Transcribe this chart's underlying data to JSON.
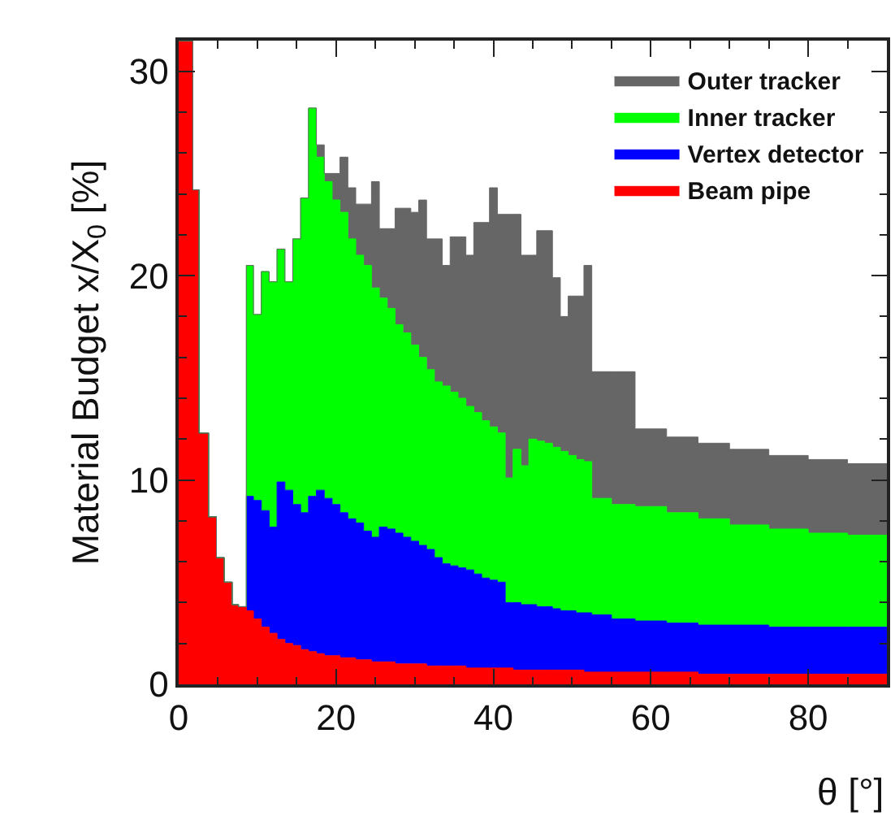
{
  "chart_data": {
    "type": "area",
    "xlabel": "θ [°]",
    "ylabel": "Material Budget x/X$_{0}$ [%]",
    "x": [
      0,
      1.8,
      2.6,
      3.8,
      4.8,
      5.8,
      6.8,
      7.6,
      8.6,
      9.5,
      10.5,
      11.5,
      12.5,
      13.5,
      14.5,
      15.5,
      16.5,
      17.5,
      18.5,
      19.5,
      20.5,
      21.5,
      22.5,
      23.5,
      24.5,
      25.5,
      26.5,
      27.5,
      28.5,
      29.5,
      30.5,
      31.5,
      32.5,
      33.5,
      34.5,
      35.5,
      36.5,
      37.5,
      38.5,
      39.5,
      40.5,
      41.5,
      42.5,
      43.5,
      44.5,
      45.5,
      46.5,
      47.5,
      48.5,
      49.5,
      50.5,
      51.5,
      52.5,
      55,
      58,
      62,
      66,
      70,
      75,
      80,
      85,
      90
    ],
    "stacked": true,
    "series": [
      {
        "name": "Beam pipe",
        "color": "#ff0000",
        "values": [
          31.5,
          24.2,
          12.3,
          8.2,
          6.2,
          5.0,
          3.9,
          3.8,
          3.6,
          3.2,
          2.8,
          2.5,
          2.2,
          2.0,
          1.9,
          1.7,
          1.6,
          1.5,
          1.4,
          1.4,
          1.3,
          1.3,
          1.2,
          1.2,
          1.1,
          1.1,
          1.1,
          1.0,
          1.0,
          1.0,
          1.0,
          0.9,
          0.9,
          0.9,
          0.9,
          0.9,
          0.8,
          0.8,
          0.8,
          0.8,
          0.8,
          0.8,
          0.7,
          0.7,
          0.7,
          0.7,
          0.7,
          0.7,
          0.7,
          0.7,
          0.7,
          0.6,
          0.6,
          0.6,
          0.6,
          0.6,
          0.5,
          0.5,
          0.5,
          0.5,
          0.5,
          0.5
        ]
      },
      {
        "name": "Vertex detector",
        "color": "#0000ff",
        "values": [
          0,
          0,
          0,
          0,
          0,
          0,
          0,
          0,
          5.6,
          5.8,
          5.7,
          5.2,
          7.7,
          7.5,
          6.9,
          6.7,
          7.6,
          8.0,
          7.7,
          7.4,
          7.1,
          6.8,
          6.7,
          6.3,
          6.1,
          6.6,
          6.5,
          6.4,
          6.2,
          6.0,
          5.8,
          5.7,
          5.3,
          5.0,
          4.9,
          4.8,
          4.8,
          4.6,
          4.4,
          4.3,
          4.2,
          3.2,
          3.3,
          3.2,
          3.2,
          3.1,
          3.1,
          3.0,
          2.9,
          2.9,
          2.8,
          2.9,
          2.8,
          2.6,
          2.5,
          2.4,
          2.4,
          2.4,
          2.3,
          2.3,
          2.3,
          2.3
        ]
      },
      {
        "name": "Inner tracker",
        "color": "#00ff00",
        "values": [
          0,
          0,
          0,
          0,
          0,
          0,
          0,
          0,
          11.3,
          9.1,
          11.7,
          12.0,
          11.4,
          10.2,
          13.0,
          15.4,
          19.0,
          16.3,
          15.5,
          14.9,
          14.7,
          13.7,
          13.1,
          13.0,
          12.2,
          11.2,
          10.8,
          10.2,
          10.0,
          9.6,
          9.2,
          8.8,
          8.6,
          8.7,
          8.5,
          8.3,
          8.0,
          7.9,
          7.7,
          7.5,
          7.3,
          6.1,
          7.5,
          6.8,
          8.1,
          8.1,
          8.0,
          7.9,
          7.8,
          7.6,
          7.5,
          7.4,
          5.7,
          5.6,
          5.6,
          5.4,
          5.2,
          4.9,
          4.8,
          4.6,
          4.5,
          4.5
        ]
      },
      {
        "name": "Outer tracker",
        "color": "#666666",
        "values": [
          0,
          0,
          0,
          0,
          0,
          0,
          0,
          0,
          0,
          0,
          0,
          0,
          0,
          0,
          0,
          0,
          0,
          0.6,
          0.4,
          1.3,
          2.7,
          2.5,
          2.5,
          3.0,
          5.2,
          3.4,
          3.9,
          5.7,
          6.1,
          6.5,
          7.7,
          6.4,
          7.0,
          5.9,
          7.6,
          7.9,
          7.4,
          9.3,
          9.7,
          11.7,
          10.7,
          12.9,
          11.5,
          10.3,
          9.0,
          10.3,
          10.4,
          8.3,
          6.6,
          7.8,
          8.0,
          9.6,
          6.2,
          6.5,
          3.8,
          3.7,
          3.7,
          3.7,
          3.6,
          3.6,
          3.5,
          3.5
        ]
      }
    ],
    "xlim": [
      0,
      90
    ],
    "xticks": [
      0,
      20,
      40,
      60,
      80
    ],
    "ylim": [
      0,
      31.5
    ],
    "yticks": [
      0,
      10,
      20,
      30
    ],
    "grid": false,
    "legend": "top right"
  }
}
